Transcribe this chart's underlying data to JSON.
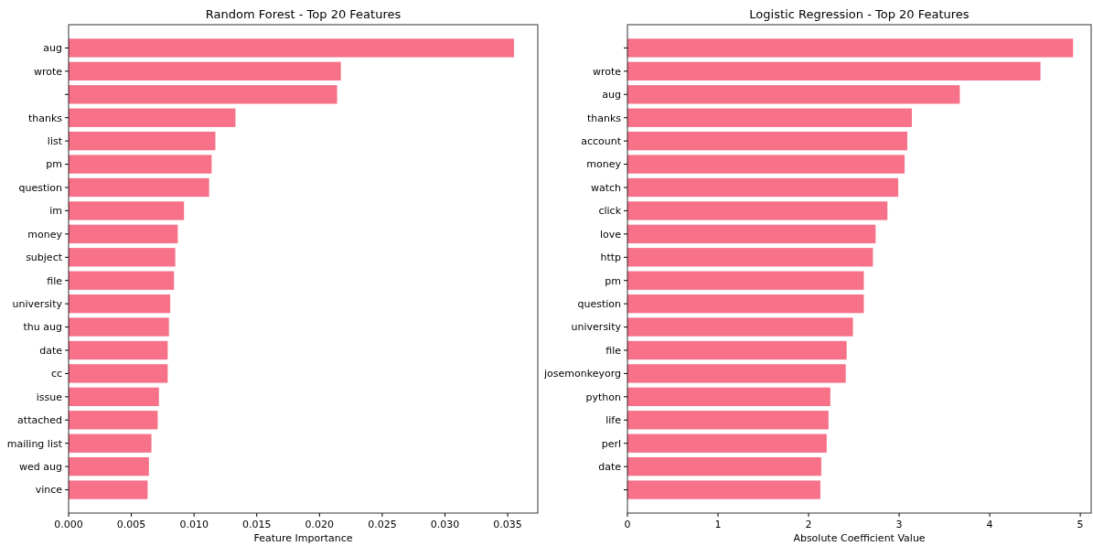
{
  "chart_data": [
    {
      "type": "bar",
      "orientation": "horizontal",
      "title": "Random Forest - Top 20 Features",
      "xlabel": "Feature Importance",
      "categories": [
        "aug",
        "wrote",
        null,
        "thanks",
        "list",
        "pm",
        "question",
        "im",
        "money",
        "subject",
        "file",
        "university",
        "thu aug",
        "date",
        "cc",
        "issue",
        "attached",
        "mailing list",
        "wed aug",
        "vince"
      ],
      "values": [
        0.0355,
        0.0217,
        0.0214,
        0.0133,
        0.0117,
        0.0114,
        0.0112,
        0.0092,
        0.0087,
        0.0085,
        0.0084,
        0.0081,
        0.008,
        0.0079,
        0.0079,
        0.0072,
        0.0071,
        0.0066,
        0.0064,
        0.0063
      ],
      "color": "#f77189",
      "xlim": [
        0,
        0.0374
      ],
      "xticks": [
        {
          "value": 0,
          "label": "0.000"
        },
        0.005,
        {
          "value": 0.01,
          "label": "0.010"
        },
        0.015,
        {
          "value": 0.02,
          "label": "0.020"
        },
        0.025,
        {
          "value": 0.03,
          "label": "0.030"
        },
        0.035
      ]
    },
    {
      "type": "bar",
      "orientation": "horizontal",
      "title": "Logistic Regression - Top 20 Features",
      "xlabel": "Absolute Coefficient Value",
      "categories": [
        null,
        "wrote",
        "aug",
        "thanks",
        "account",
        "money",
        "watch",
        "click",
        "love",
        "http",
        "pm",
        "question",
        "university",
        "file",
        "josemonkeyorg",
        "python",
        "life",
        "perl",
        "date",
        null
      ],
      "values": [
        4.92,
        4.56,
        3.67,
        3.14,
        3.09,
        3.06,
        2.99,
        2.87,
        2.74,
        2.71,
        2.61,
        2.61,
        2.49,
        2.42,
        2.41,
        2.24,
        2.22,
        2.2,
        2.14,
        2.13
      ],
      "color": "#f77189",
      "xlim": [
        0,
        5.12
      ],
      "xticks": [
        0,
        1,
        2,
        3,
        4,
        5
      ]
    }
  ]
}
